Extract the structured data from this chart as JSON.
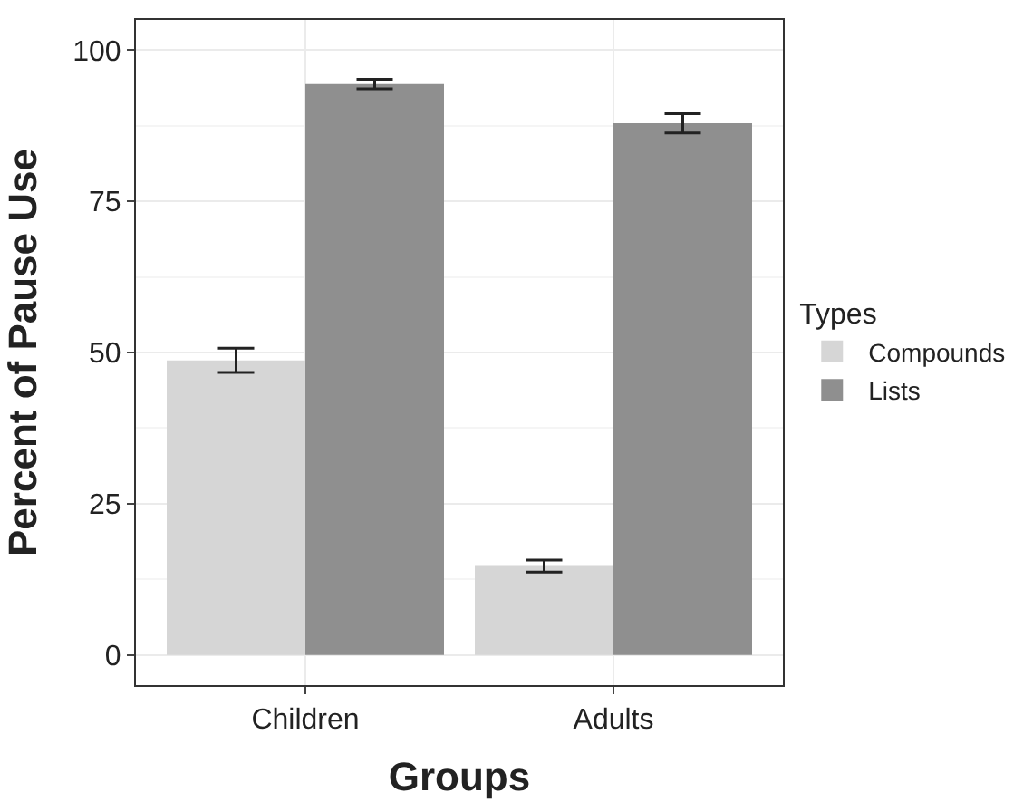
{
  "chart_data": {
    "type": "bar",
    "xlabel": "Groups",
    "ylabel": "Percent of Pause Use",
    "legend_title": "Types",
    "categories": [
      "Children",
      "Adults"
    ],
    "series": [
      {
        "name": "Compounds",
        "color": "#d6d6d6",
        "values": [
          48.7,
          14.7
        ],
        "errors": [
          2,
          1
        ]
      },
      {
        "name": "Lists",
        "color": "#8f8f8f",
        "values": [
          94.4,
          87.9
        ],
        "errors": [
          0.8,
          1.6
        ]
      }
    ],
    "ylim": [
      -5,
      105
    ],
    "yticks": [
      0,
      25,
      50,
      75,
      100
    ],
    "grid": true,
    "legend": "right"
  }
}
